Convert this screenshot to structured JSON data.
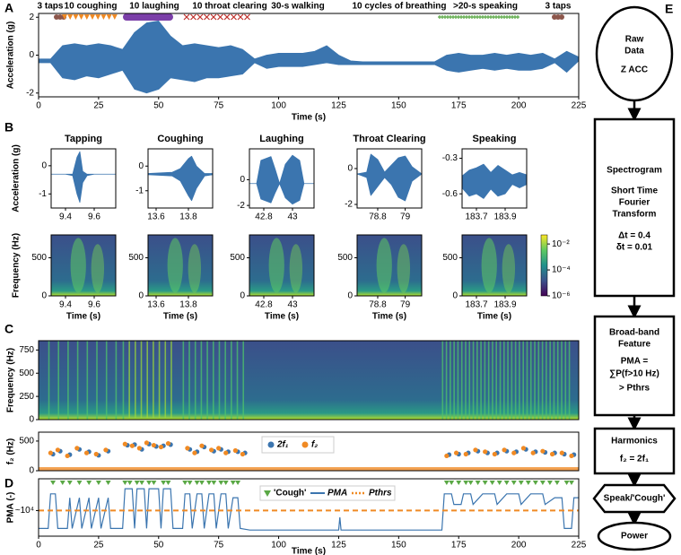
{
  "chart_data": [
    {
      "type": "area",
      "panel_label": "A",
      "ylabel": "Acceleration (g)",
      "xlabel": "Time (s)",
      "color": "#3b75af",
      "xlim": [
        0,
        225
      ],
      "xticks": [
        0,
        25,
        50,
        75,
        100,
        125,
        150,
        175,
        200,
        225
      ],
      "ylim": [
        -2.2,
        2.2
      ],
      "yticks": [
        -2,
        0,
        2
      ],
      "annotations": [
        {
          "text": "3 taps",
          "color": "#8c564b"
        },
        {
          "text": "10 coughing",
          "color": "#f08a24"
        },
        {
          "text": "10 laughing",
          "color": "#7b3fa8"
        },
        {
          "text": "10 throat clearing",
          "color": "#c0302b"
        },
        {
          "text": "30-s walking",
          "color": "#000000"
        },
        {
          "text": "10 cycles of breathing",
          "color": "#000000"
        },
        {
          "text": ">20-s speaking",
          "color": "#5aa845"
        },
        {
          "text": "3 taps",
          "color": "#8c564b"
        }
      ],
      "x": [
        0,
        5,
        10,
        15,
        20,
        25,
        30,
        35,
        40,
        45,
        50,
        55,
        60,
        65,
        70,
        75,
        80,
        85,
        90,
        95,
        100,
        105,
        110,
        115,
        120,
        125,
        130,
        135,
        140,
        145,
        150,
        155,
        160,
        165,
        170,
        175,
        180,
        185,
        190,
        195,
        200,
        205,
        210,
        215,
        220,
        225
      ],
      "upper": [
        -0.2,
        -0.2,
        0.5,
        0.6,
        0.5,
        0.6,
        0.5,
        0.3,
        1.2,
        1.7,
        1.8,
        1.0,
        0.5,
        0.6,
        0.5,
        0.4,
        0.5,
        0.3,
        -0.2,
        0.0,
        0.1,
        0.1,
        0.1,
        0.2,
        0.5,
        0.0,
        -0.3,
        -0.35,
        -0.35,
        -0.35,
        -0.35,
        -0.35,
        -0.35,
        -0.35,
        0.0,
        0.1,
        0.0,
        0.0,
        0.1,
        0.0,
        0.1,
        0.0,
        0.1,
        -0.2,
        0.2,
        -0.1
      ],
      "lower": [
        -0.4,
        -0.4,
        -1.2,
        -1.3,
        -1.1,
        -1.2,
        -1.0,
        -0.8,
        -1.8,
        -2.0,
        -1.8,
        -1.2,
        -1.3,
        -1.4,
        -1.2,
        -1.2,
        -1.1,
        -1.0,
        -0.4,
        -0.7,
        -0.6,
        -0.6,
        -0.6,
        -0.5,
        -0.4,
        -0.5,
        -0.5,
        -0.5,
        -0.5,
        -0.5,
        -0.5,
        -0.5,
        -0.5,
        -0.5,
        -0.8,
        -0.9,
        -0.8,
        -0.7,
        -0.8,
        -0.7,
        -0.8,
        -0.8,
        -0.7,
        -0.4,
        -0.9,
        -0.3
      ]
    },
    {
      "type": "area",
      "panel_label": "B",
      "title": "Tapping",
      "title_color": "#8c564b",
      "ylabel": "Acceleration (g)",
      "color": "#3b75af",
      "xlim": [
        9.3,
        9.75
      ],
      "xticks": [
        9.4,
        9.6
      ],
      "ylim": [
        -1.5,
        0.6
      ],
      "yticks": [
        0,
        -1
      ],
      "x": [
        9.3,
        9.4,
        9.45,
        9.48,
        9.5,
        9.52,
        9.55,
        9.6,
        9.75
      ],
      "upper": [
        -0.3,
        -0.3,
        -0.3,
        0.3,
        0.5,
        -0.2,
        -0.3,
        -0.3,
        -0.3
      ],
      "lower": [
        -0.3,
        -0.3,
        -0.35,
        -1.0,
        -1.3,
        -0.6,
        -0.35,
        -0.3,
        -0.3
      ]
    },
    {
      "type": "area",
      "title": "Coughing",
      "title_color": "#f08a24",
      "color": "#3b75af",
      "xlim": [
        13.55,
        13.95
      ],
      "xticks": [
        13.6,
        13.8
      ],
      "ylim": [
        -1.7,
        0.7
      ],
      "yticks": [
        0,
        -1
      ],
      "x": [
        13.55,
        13.7,
        13.75,
        13.8,
        13.82,
        13.85,
        13.9,
        13.95
      ],
      "upper": [
        -0.3,
        -0.25,
        -0.1,
        0.3,
        0.4,
        0.0,
        -0.3,
        -0.3
      ],
      "lower": [
        -0.35,
        -0.4,
        -0.6,
        -1.2,
        -1.4,
        -0.9,
        -0.4,
        -0.35
      ]
    },
    {
      "type": "area",
      "title": "Laughing",
      "title_color": "#7b3fa8",
      "color": "#3b75af",
      "xlim": [
        42.7,
        43.15
      ],
      "xticks": [
        42.8,
        43.0
      ],
      "ylim": [
        -2.2,
        2.4
      ],
      "yticks": [
        0,
        -2
      ],
      "x": [
        42.7,
        42.75,
        42.78,
        42.85,
        42.88,
        42.91,
        42.95,
        43.0,
        43.05,
        43.08,
        43.15
      ],
      "upper": [
        -0.3,
        -0.3,
        1.5,
        1.8,
        0.8,
        -0.3,
        1.2,
        1.9,
        1.5,
        -0.3,
        -0.3
      ],
      "lower": [
        -0.3,
        -0.3,
        -1.5,
        -1.8,
        -1.0,
        -0.3,
        -1.4,
        -1.9,
        -1.6,
        -0.3,
        -0.3
      ]
    },
    {
      "type": "area",
      "title": "Throat Clearing",
      "title_color": "#c0302b",
      "color": "#3b75af",
      "xlim": [
        78.65,
        79.12
      ],
      "xticks": [
        78.8,
        79.0
      ],
      "ylim": [
        -2.2,
        1.1
      ],
      "yticks": [
        0,
        -2
      ],
      "x": [
        78.65,
        78.72,
        78.75,
        78.8,
        78.85,
        78.9,
        78.95,
        79.0,
        79.05,
        79.12
      ],
      "upper": [
        -0.3,
        -0.2,
        0.8,
        0.5,
        -0.2,
        0.2,
        0.6,
        0.7,
        0.1,
        -0.3
      ],
      "lower": [
        -0.3,
        -0.5,
        -1.5,
        -1.0,
        -0.5,
        -0.9,
        -1.6,
        -1.8,
        -0.7,
        -0.3
      ]
    },
    {
      "type": "area",
      "title": "Speaking",
      "title_color": "#5aa845",
      "color": "#3b75af",
      "xlim": [
        183.6,
        184.05
      ],
      "xticks": [
        183.7,
        183.9
      ],
      "ylim": [
        -0.72,
        -0.22
      ],
      "yticks": [
        -0.3,
        -0.6
      ],
      "x": [
        183.6,
        183.65,
        183.7,
        183.75,
        183.8,
        183.85,
        183.9,
        183.95,
        184.0,
        184.05
      ],
      "upper": [
        -0.45,
        -0.4,
        -0.38,
        -0.35,
        -0.42,
        -0.36,
        -0.4,
        -0.44,
        -0.42,
        -0.44
      ],
      "lower": [
        -0.55,
        -0.62,
        -0.6,
        -0.64,
        -0.56,
        -0.62,
        -0.6,
        -0.52,
        -0.55,
        -0.52
      ]
    },
    {
      "type": "heatmap",
      "ylabel": "Frequency (Hz)",
      "xlabel": "Time (s)",
      "xlim": [
        9.3,
        9.75
      ],
      "xticks": [
        9.4,
        9.6
      ],
      "ylim": [
        0,
        800
      ],
      "yticks": [
        0,
        500
      ]
    },
    {
      "type": "heatmap",
      "xlabel": "Time (s)",
      "xlim": [
        13.55,
        13.95
      ],
      "xticks": [
        13.6,
        13.8
      ],
      "ylim": [
        0,
        800
      ],
      "yticks": [
        0,
        500
      ]
    },
    {
      "type": "heatmap",
      "xlabel": "Time (s)",
      "xlim": [
        42.7,
        43.15
      ],
      "xticks": [
        42.8,
        43.0
      ],
      "ylim": [
        0,
        800
      ],
      "yticks": [
        0,
        500
      ]
    },
    {
      "type": "heatmap",
      "xlabel": "Time (s)",
      "xlim": [
        78.65,
        79.12
      ],
      "xticks": [
        78.8,
        79.0
      ],
      "ylim": [
        0,
        800
      ],
      "yticks": [
        0,
        500
      ]
    },
    {
      "type": "heatmap",
      "xlabel": "Time (s)",
      "xlim": [
        183.6,
        184.05
      ],
      "xticks": [
        183.7,
        183.9
      ],
      "ylim": [
        0,
        800
      ],
      "yticks": [
        0,
        500
      ]
    },
    {
      "type": "colorbar",
      "log": true,
      "lim": [
        1e-06,
        0.05
      ],
      "ticks": [
        {
          "value": 0.01,
          "label": "10⁻²"
        },
        {
          "value": 0.0001,
          "label": "10⁻⁴"
        },
        {
          "value": 1e-06,
          "label": "10⁻⁶"
        }
      ]
    },
    {
      "type": "heatmap",
      "panel_label": "C",
      "ylabel": "Frequency (Hz)",
      "xlim": [
        0,
        225
      ],
      "ylim": [
        0,
        850
      ],
      "yticks": [
        0,
        250,
        500,
        750
      ]
    },
    {
      "type": "scatter",
      "ylabel": "f₂ (Hz)",
      "xlim": [
        0,
        225
      ],
      "ylim": [
        0,
        650
      ],
      "yticks": [
        0,
        500
      ],
      "series": [
        {
          "name": "2f₁",
          "color": "#3b75af",
          "x": [
            6,
            9,
            13,
            17,
            21,
            25,
            29,
            37,
            40,
            43,
            46,
            49,
            52,
            55,
            63,
            66,
            69,
            73,
            76,
            79,
            83,
            86,
            171,
            175,
            179,
            183,
            187,
            191,
            195,
            199,
            203,
            207,
            211,
            215,
            219,
            223
          ],
          "values": [
            280,
            330,
            270,
            360,
            320,
            260,
            330,
            430,
            440,
            360,
            450,
            410,
            420,
            440,
            360,
            320,
            400,
            330,
            360,
            320,
            320,
            300,
            270,
            280,
            300,
            330,
            300,
            300,
            330,
            320,
            360,
            320,
            310,
            300,
            280,
            270
          ]
        },
        {
          "name": "f₂",
          "color": "#f08a24",
          "x": [
            5,
            8,
            12,
            16,
            20,
            24,
            28,
            36,
            39,
            42,
            45,
            48,
            51,
            54,
            62,
            65,
            68,
            72,
            75,
            78,
            82,
            85,
            170,
            174,
            178,
            182,
            186,
            190,
            194,
            198,
            202,
            206,
            210,
            214,
            218,
            222
          ],
          "values": [
            300,
            350,
            250,
            380,
            300,
            280,
            350,
            450,
            420,
            380,
            470,
            430,
            400,
            460,
            380,
            300,
            420,
            350,
            380,
            300,
            340,
            280,
            250,
            300,
            280,
            350,
            320,
            280,
            350,
            300,
            380,
            300,
            330,
            280,
            300,
            250
          ]
        }
      ]
    },
    {
      "type": "line",
      "panel_label": "D",
      "ylabel": "PMA (-)",
      "xlabel": "Time (s)",
      "ylog": true,
      "xlim": [
        0,
        225
      ],
      "xticks": [
        0,
        25,
        50,
        75,
        100,
        125,
        150,
        175,
        200,
        225
      ],
      "ylim": [
        100,
        3000000
      ],
      "yticks": [
        {
          "value": 10000,
          "label": "~10⁴"
        }
      ],
      "series": [
        {
          "name": "PMA",
          "color": "#3b75af",
          "x": [
            0,
            4,
            5,
            7,
            8,
            12,
            13,
            14,
            17,
            18,
            21,
            22,
            25,
            26,
            29,
            30,
            35,
            36,
            39,
            40,
            41,
            44,
            45,
            46,
            50,
            51,
            52,
            55,
            56,
            60,
            61,
            63,
            64,
            66,
            68,
            69,
            71,
            73,
            74,
            76,
            78,
            79,
            81,
            83,
            84,
            88,
            125,
            125.5,
            126,
            168,
            169,
            172,
            173,
            176,
            177,
            180,
            181,
            185,
            190,
            191,
            195,
            200,
            201,
            205,
            210,
            211,
            215,
            218,
            219,
            222,
            223,
            225
          ],
          "values": [
            400,
            400,
            200000,
            200000,
            400,
            400,
            100000,
            400,
            100000,
            400,
            100000,
            400,
            100000,
            400,
            100000,
            400,
            400,
            500000,
            500000,
            400,
            500000,
            500000,
            400,
            500000,
            500000,
            400,
            500000,
            500000,
            400,
            400,
            200000,
            200000,
            400,
            200000,
            200000,
            400,
            200000,
            200000,
            400,
            200000,
            200000,
            400,
            100000,
            100000,
            400,
            300,
            300,
            3000,
            300,
            300,
            200000,
            200000,
            30000,
            30000,
            200000,
            200000,
            30000,
            200000,
            200000,
            30000,
            200000,
            200000,
            30000,
            200000,
            200000,
            30000,
            100000,
            100000,
            400,
            400,
            100000,
            100000
          ]
        }
      ],
      "threshold": {
        "name": "Pthrs",
        "color": "#f08a24",
        "value": 10000
      },
      "coughs": {
        "name": "'Cough'",
        "color": "#5aa845",
        "x": [
          6,
          10,
          13,
          17,
          21,
          25,
          29,
          36,
          38,
          41,
          43,
          46,
          48,
          52,
          54,
          61,
          63,
          66,
          68,
          71,
          73,
          76,
          78,
          81,
          83,
          170,
          172,
          175,
          178,
          180,
          183,
          186,
          189,
          192,
          195,
          198,
          201,
          204,
          207,
          210,
          213,
          216,
          220,
          222
        ]
      }
    }
  ],
  "flowchart": {
    "panel_label": "E",
    "nodes": [
      {
        "lines": [
          "Raw",
          "Data",
          "Z ACC"
        ]
      },
      {
        "lines": [
          "Spectrogram",
          "Short Time",
          "Fourier",
          "Transform",
          "Δt = 0.4",
          "δt = 0.01"
        ]
      },
      {
        "lines": [
          "Broad-band",
          "Feature",
          "PMA =",
          "∑P(f>10 Hz)",
          "> Pthrs"
        ]
      },
      {
        "lines": [
          "Harmonics",
          "f₂ = 2f₁"
        ]
      },
      {
        "lines": [
          "Speak/'Cough'"
        ]
      },
      {
        "lines": [
          "Power"
        ]
      }
    ]
  }
}
